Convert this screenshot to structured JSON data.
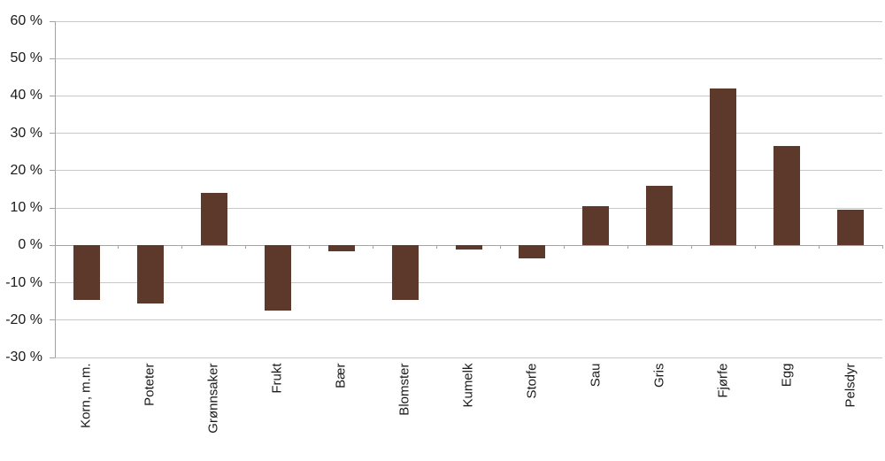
{
  "chart_data": {
    "type": "bar",
    "title": "",
    "xlabel": "",
    "ylabel": "",
    "categories": [
      "Korn, m.m.",
      "Poteter",
      "Grønnsaker",
      "Frukt",
      "Bær",
      "Blomster",
      "Kumelk",
      "Storfe",
      "Sau",
      "Gris",
      "Fjørfe",
      "Egg",
      "Pelsdyr"
    ],
    "values": [
      -14.5,
      -15.5,
      14,
      -17.5,
      -1.5,
      -14.5,
      -1,
      -3.5,
      10.5,
      16,
      42,
      26.5,
      9.5
    ],
    "value_unit": "%",
    "ylim": [
      -30,
      60
    ],
    "ytick_step": 10,
    "ytick_labels": [
      "60 %",
      "50 %",
      "40 %",
      "30 %",
      "20 %",
      "10 %",
      "0 %",
      "-10 %",
      "-20 %",
      "-30 %"
    ],
    "grid": "horizontal",
    "legend_position": "none"
  },
  "colors": {
    "bar": "#5c392b",
    "gridline": "#c8c8c8",
    "axis": "#a3a3a3",
    "text": "#1a1a1a",
    "background": "#ffffff"
  }
}
